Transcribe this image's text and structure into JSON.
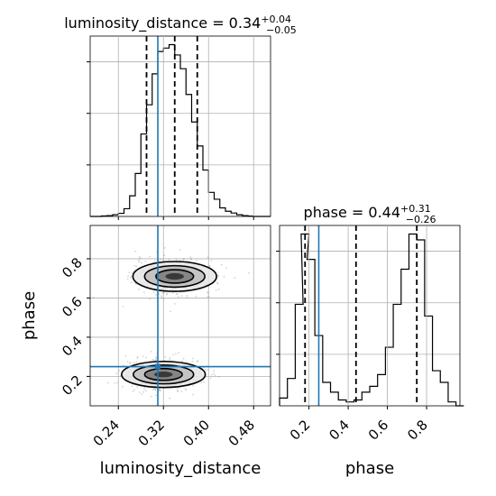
{
  "colors": {
    "truth": "#1f77b4",
    "hist": "#000000",
    "grid": "#b0b0b0",
    "scatter": "#808080"
  },
  "chart_data": [
    {
      "type": "histogram",
      "panel": "luminosity_distance marginal",
      "title": {
        "prefix": "luminosity_distance = 0.34",
        "sup": "+0.04",
        "sub": "−0.05"
      },
      "xlim": [
        0.19,
        0.51
      ],
      "bins": [
        [
          0.19,
          0.0
        ],
        [
          0.2,
          0.0
        ],
        [
          0.21,
          0.003
        ],
        [
          0.22,
          0.005
        ],
        [
          0.23,
          0.01
        ],
        [
          0.24,
          0.018
        ],
        [
          0.25,
          0.045
        ],
        [
          0.26,
          0.12
        ],
        [
          0.27,
          0.25
        ],
        [
          0.28,
          0.48
        ],
        [
          0.29,
          0.65
        ],
        [
          0.3,
          0.83
        ],
        [
          0.31,
          0.96
        ],
        [
          0.32,
          0.98
        ],
        [
          0.33,
          1.0
        ],
        [
          0.34,
          0.94
        ],
        [
          0.35,
          0.86
        ],
        [
          0.36,
          0.71
        ],
        [
          0.37,
          0.55
        ],
        [
          0.38,
          0.41
        ],
        [
          0.39,
          0.27
        ],
        [
          0.4,
          0.14
        ],
        [
          0.41,
          0.1
        ],
        [
          0.42,
          0.05
        ],
        [
          0.43,
          0.03
        ],
        [
          0.44,
          0.02
        ],
        [
          0.45,
          0.01
        ],
        [
          0.46,
          0.005
        ],
        [
          0.47,
          0.002
        ],
        [
          0.48,
          0.0
        ],
        [
          0.49,
          0.0
        ],
        [
          0.5,
          0.0
        ]
      ],
      "quantiles": [
        0.29,
        0.34,
        0.38
      ],
      "truth": 0.31
    },
    {
      "type": "histogram",
      "panel": "phase marginal",
      "title": {
        "prefix": "phase = 0.44",
        "sup": "+0.31",
        "sub": "−0.26"
      },
      "xlim": [
        0.05,
        0.97
      ],
      "bins": [
        [
          0.05,
          0.04
        ],
        [
          0.09,
          0.14
        ],
        [
          0.13,
          0.52
        ],
        [
          0.16,
          0.88
        ],
        [
          0.19,
          0.75
        ],
        [
          0.23,
          0.36
        ],
        [
          0.27,
          0.12
        ],
        [
          0.31,
          0.07
        ],
        [
          0.35,
          0.03
        ],
        [
          0.39,
          0.02
        ],
        [
          0.43,
          0.03
        ],
        [
          0.47,
          0.07
        ],
        [
          0.51,
          0.1
        ],
        [
          0.55,
          0.16
        ],
        [
          0.59,
          0.3
        ],
        [
          0.63,
          0.52
        ],
        [
          0.67,
          0.7
        ],
        [
          0.71,
          0.88
        ],
        [
          0.75,
          0.85
        ],
        [
          0.79,
          0.46
        ],
        [
          0.83,
          0.18
        ],
        [
          0.87,
          0.12
        ],
        [
          0.91,
          0.02
        ],
        [
          0.95,
          0.0
        ]
      ],
      "quantiles": [
        0.18,
        0.44,
        0.75
      ],
      "truth": 0.25
    },
    {
      "type": "scatter",
      "panel": "phase vs luminosity_distance",
      "xlabel": "luminosity_distance",
      "ylabel": "phase",
      "xlim": [
        0.19,
        0.51
      ],
      "ylim": [
        0.05,
        0.97
      ],
      "x_ticks": [
        "0.24",
        "0.32",
        "0.40",
        "0.48"
      ],
      "y_ticks": [
        "0.2",
        "0.4",
        "0.6",
        "0.8"
      ],
      "clusters": [
        {
          "center": [
            0.34,
            0.71
          ],
          "spread": [
            0.045,
            0.08
          ]
        },
        {
          "center": [
            0.32,
            0.21
          ],
          "spread": [
            0.045,
            0.07
          ]
        }
      ],
      "truth": {
        "x": 0.31,
        "y": 0.25
      }
    },
    {
      "type": "axis",
      "panel": "phase x-axis",
      "xlabel": "phase",
      "xlim": [
        0.05,
        0.97
      ],
      "x_ticks": [
        "0.2",
        "0.4",
        "0.6",
        "0.8"
      ]
    }
  ]
}
